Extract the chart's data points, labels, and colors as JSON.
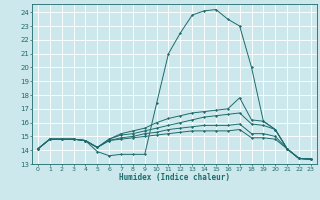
{
  "xlabel": "Humidex (Indice chaleur)",
  "bg_color": "#cce8ec",
  "line_color": "#1e6b6b",
  "grid_color": "#ffffff",
  "xlim": [
    -0.5,
    23.5
  ],
  "ylim": [
    13,
    24.6
  ],
  "yticks": [
    13,
    14,
    15,
    16,
    17,
    18,
    19,
    20,
    21,
    22,
    23,
    24
  ],
  "xticks": [
    0,
    1,
    2,
    3,
    4,
    5,
    6,
    7,
    8,
    9,
    10,
    11,
    12,
    13,
    14,
    15,
    16,
    17,
    18,
    19,
    20,
    21,
    22,
    23
  ],
  "xtick_labels": [
    "0",
    "1",
    "2",
    "3",
    "4",
    "5",
    "6",
    "7",
    "8",
    "9",
    "10",
    "11",
    "12",
    "13",
    "14",
    "15",
    "16",
    "17",
    "18",
    "19",
    "20",
    "21",
    "22",
    "23"
  ],
  "lines": [
    [
      14.1,
      14.8,
      14.8,
      14.8,
      14.7,
      13.9,
      13.6,
      13.7,
      13.7,
      13.7,
      17.4,
      21.0,
      22.5,
      23.8,
      24.1,
      24.2,
      23.5,
      23.0,
      20.0,
      16.1,
      15.5,
      14.1,
      13.4,
      13.35
    ],
    [
      14.1,
      14.8,
      14.8,
      14.8,
      14.7,
      14.2,
      14.8,
      15.2,
      15.4,
      15.6,
      16.0,
      16.3,
      16.5,
      16.7,
      16.8,
      16.9,
      17.0,
      17.8,
      16.2,
      16.1,
      15.5,
      14.1,
      13.4,
      13.35
    ],
    [
      14.1,
      14.8,
      14.8,
      14.8,
      14.7,
      14.2,
      14.8,
      15.1,
      15.2,
      15.4,
      15.6,
      15.8,
      16.0,
      16.2,
      16.4,
      16.5,
      16.6,
      16.7,
      15.9,
      15.8,
      15.5,
      14.1,
      13.4,
      13.35
    ],
    [
      14.1,
      14.8,
      14.8,
      14.8,
      14.7,
      14.2,
      14.7,
      14.9,
      15.0,
      15.2,
      15.3,
      15.5,
      15.6,
      15.7,
      15.8,
      15.8,
      15.8,
      15.9,
      15.2,
      15.2,
      15.0,
      14.1,
      13.4,
      13.35
    ],
    [
      14.1,
      14.8,
      14.8,
      14.8,
      14.7,
      14.2,
      14.7,
      14.8,
      14.9,
      15.0,
      15.1,
      15.2,
      15.3,
      15.4,
      15.4,
      15.4,
      15.4,
      15.5,
      14.9,
      14.9,
      14.8,
      14.1,
      13.4,
      13.35
    ]
  ]
}
